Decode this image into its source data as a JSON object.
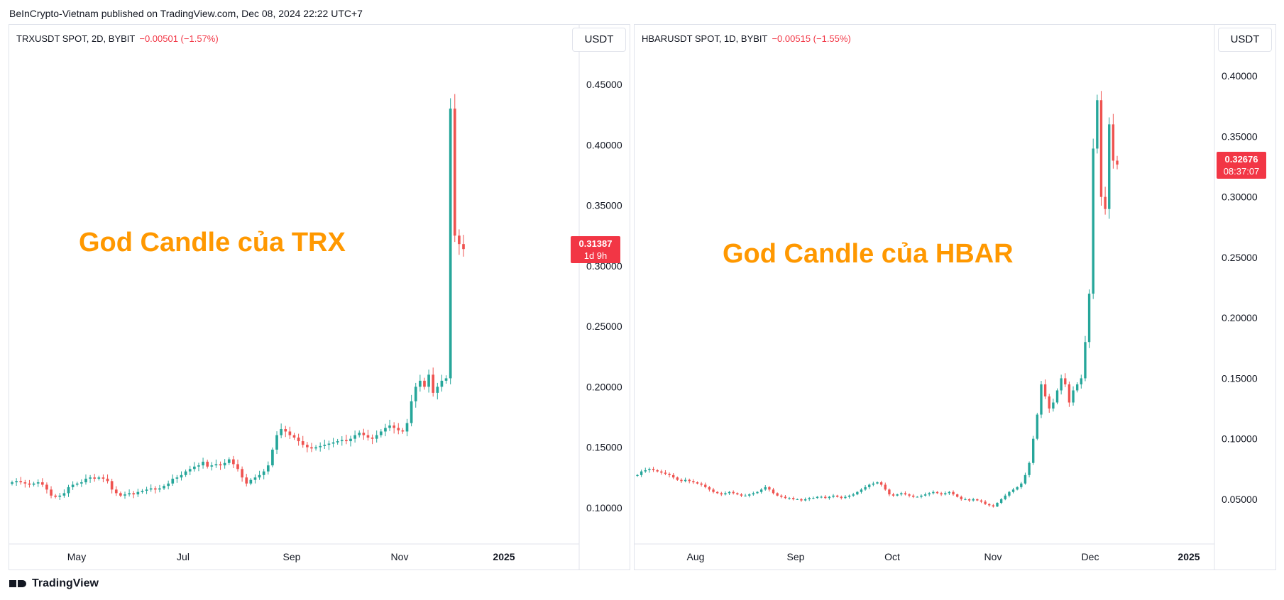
{
  "header": {
    "publisher_line": "BeInCrypto-Vietnam published on TradingView.com, Dec 08, 2024 22:22 UTC+7"
  },
  "footer": {
    "brand": "TradingView",
    "brand_icon": "tradingview-logo-icon"
  },
  "colors": {
    "up": "#26a69a",
    "down": "#ef5350",
    "annotation": "#ff9800",
    "price_tag": "#f23645",
    "grid": "#e0e3eb"
  },
  "panels": [
    {
      "symbol_line": "TRXUSDT SPOT, 2D, BYBIT",
      "change": "−0.00501 (−1.57%)",
      "currency": "USDT",
      "last_price": "0.31387",
      "countdown": "1d 9h",
      "annotation": "God Candle của TRX"
    },
    {
      "symbol_line": "HBARUSDT SPOT, 1D, BYBIT",
      "change": "−0.00515 (−1.55%)",
      "currency": "USDT",
      "last_price": "0.32676",
      "countdown": "08:37:07",
      "annotation": "God Candle của HBAR"
    }
  ],
  "chart_data": [
    {
      "type": "candlestick",
      "symbol": "TRXUSDT SPOT",
      "timeframe": "2D",
      "exchange": "BYBIT",
      "y_ticks": [
        "0.45000",
        "0.40000",
        "0.35000",
        "0.30000",
        "0.25000",
        "0.20000",
        "0.15000",
        "0.10000"
      ],
      "x_ticks": [
        "May",
        "Jul",
        "Sep",
        "Nov",
        "2025"
      ],
      "ylim": [
        0.07,
        0.47
      ],
      "last_price": 0.31387,
      "closes": [
        0.121,
        0.122,
        0.121,
        0.12,
        0.119,
        0.12,
        0.121,
        0.119,
        0.115,
        0.11,
        0.109,
        0.11,
        0.112,
        0.117,
        0.119,
        0.12,
        0.121,
        0.124,
        0.125,
        0.124,
        0.125,
        0.124,
        0.122,
        0.115,
        0.112,
        0.11,
        0.111,
        0.112,
        0.111,
        0.113,
        0.114,
        0.115,
        0.116,
        0.115,
        0.116,
        0.118,
        0.12,
        0.124,
        0.125,
        0.127,
        0.13,
        0.132,
        0.134,
        0.135,
        0.138,
        0.134,
        0.135,
        0.136,
        0.135,
        0.137,
        0.14,
        0.136,
        0.132,
        0.125,
        0.12,
        0.123,
        0.125,
        0.127,
        0.13,
        0.135,
        0.148,
        0.16,
        0.165,
        0.163,
        0.16,
        0.158,
        0.155,
        0.152,
        0.15,
        0.149,
        0.15,
        0.151,
        0.152,
        0.153,
        0.154,
        0.155,
        0.156,
        0.155,
        0.157,
        0.16,
        0.162,
        0.16,
        0.158,
        0.157,
        0.16,
        0.163,
        0.166,
        0.168,
        0.166,
        0.164,
        0.163,
        0.17,
        0.188,
        0.2,
        0.205,
        0.2,
        0.21,
        0.195,
        0.2,
        0.205,
        0.207,
        0.43,
        0.325,
        0.318,
        0.31387
      ]
    },
    {
      "type": "candlestick",
      "symbol": "HBARUSDT SPOT",
      "timeframe": "1D",
      "exchange": "BYBIT",
      "y_ticks": [
        "0.40000",
        "0.35000",
        "0.30000",
        "0.25000",
        "0.20000",
        "0.15000",
        "0.10000",
        "0.05000"
      ],
      "x_ticks": [
        "Aug",
        "Sep",
        "Oct",
        "Nov",
        "Dec",
        "2025"
      ],
      "ylim": [
        0.013,
        0.413
      ],
      "last_price": 0.32676,
      "closes": [
        0.07,
        0.073,
        0.074,
        0.075,
        0.074,
        0.073,
        0.072,
        0.071,
        0.07,
        0.068,
        0.066,
        0.065,
        0.066,
        0.065,
        0.064,
        0.063,
        0.062,
        0.06,
        0.058,
        0.056,
        0.055,
        0.054,
        0.055,
        0.056,
        0.055,
        0.054,
        0.053,
        0.053,
        0.054,
        0.055,
        0.056,
        0.058,
        0.06,
        0.058,
        0.055,
        0.053,
        0.052,
        0.051,
        0.051,
        0.05,
        0.05,
        0.049,
        0.05,
        0.051,
        0.051,
        0.052,
        0.052,
        0.051,
        0.052,
        0.053,
        0.052,
        0.051,
        0.052,
        0.053,
        0.054,
        0.056,
        0.058,
        0.06,
        0.062,
        0.063,
        0.064,
        0.062,
        0.058,
        0.054,
        0.053,
        0.054,
        0.055,
        0.054,
        0.053,
        0.052,
        0.052,
        0.053,
        0.054,
        0.055,
        0.056,
        0.055,
        0.054,
        0.055,
        0.056,
        0.054,
        0.052,
        0.05,
        0.05,
        0.049,
        0.05,
        0.049,
        0.048,
        0.046,
        0.045,
        0.044,
        0.047,
        0.05,
        0.053,
        0.056,
        0.058,
        0.06,
        0.063,
        0.07,
        0.08,
        0.1,
        0.12,
        0.145,
        0.135,
        0.125,
        0.13,
        0.14,
        0.15,
        0.145,
        0.13,
        0.14,
        0.145,
        0.15,
        0.18,
        0.22,
        0.34,
        0.38,
        0.3,
        0.29,
        0.36,
        0.33,
        0.32676
      ]
    }
  ]
}
